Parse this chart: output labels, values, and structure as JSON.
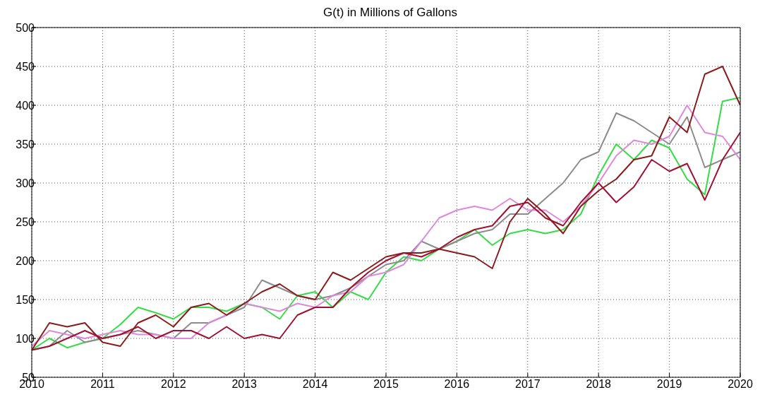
{
  "chart_data": {
    "type": "line",
    "title": "G(t) in Millions of Gallons",
    "x": [
      2010,
      2010.25,
      2010.5,
      2010.75,
      2011,
      2011.25,
      2011.5,
      2011.75,
      2012,
      2012.25,
      2012.5,
      2012.75,
      2013,
      2013.25,
      2013.5,
      2013.75,
      2014,
      2014.25,
      2014.5,
      2014.75,
      2015,
      2015.25,
      2015.5,
      2015.75,
      2016,
      2016.25,
      2016.5,
      2016.75,
      2017,
      2017.25,
      2017.5,
      2017.75,
      2018,
      2018.25,
      2018.5,
      2018.75,
      2019,
      2019.25,
      2019.5,
      2019.75,
      2020
    ],
    "series": [
      {
        "color": "#33dd44",
        "values": [
          85,
          100,
          88,
          95,
          100,
          118,
          140,
          133,
          125,
          140,
          140,
          135,
          145,
          140,
          125,
          155,
          160,
          140,
          160,
          150,
          185,
          205,
          200,
          215,
          225,
          240,
          220,
          235,
          240,
          235,
          240,
          260,
          310,
          350,
          330,
          355,
          345,
          305,
          285,
          405,
          410
        ]
      },
      {
        "color": "#8c8c8c",
        "values": [
          85,
          90,
          110,
          95,
          100,
          105,
          110,
          105,
          100,
          120,
          120,
          130,
          140,
          175,
          165,
          155,
          150,
          155,
          165,
          180,
          195,
          200,
          225,
          215,
          225,
          235,
          240,
          260,
          260,
          280,
          300,
          330,
          340,
          390,
          380,
          365,
          350,
          385,
          320,
          330,
          340
        ]
      },
      {
        "color": "#dd88dd",
        "values": [
          90,
          110,
          105,
          100,
          105,
          110,
          105,
          105,
          100,
          100,
          120,
          130,
          145,
          140,
          135,
          145,
          140,
          155,
          160,
          180,
          185,
          195,
          225,
          255,
          265,
          270,
          265,
          280,
          265,
          265,
          250,
          270,
          300,
          335,
          355,
          350,
          360,
          400,
          365,
          360,
          330
        ]
      },
      {
        "color": "#8b1a1a",
        "values": [
          85,
          120,
          115,
          120,
          95,
          90,
          120,
          130,
          115,
          140,
          145,
          130,
          145,
          160,
          170,
          155,
          150,
          185,
          175,
          190,
          205,
          210,
          210,
          215,
          210,
          205,
          190,
          250,
          280,
          260,
          235,
          270,
          290,
          305,
          330,
          335,
          385,
          365,
          440,
          450,
          400
        ]
      },
      {
        "color": "#a01030",
        "values": [
          85,
          90,
          100,
          110,
          100,
          105,
          115,
          100,
          110,
          110,
          100,
          115,
          100,
          105,
          100,
          130,
          140,
          140,
          165,
          185,
          200,
          210,
          205,
          215,
          230,
          240,
          245,
          270,
          275,
          255,
          245,
          275,
          300,
          275,
          295,
          330,
          315,
          325,
          278,
          330,
          365
        ]
      }
    ],
    "xlim": [
      2010,
      2020
    ],
    "xticks": [
      2010,
      2011,
      2012,
      2013,
      2014,
      2015,
      2016,
      2017,
      2018,
      2019,
      2020
    ],
    "ylim": [
      50,
      500
    ],
    "yticks": [
      50,
      100,
      150,
      200,
      250,
      300,
      350,
      400,
      450,
      500
    ],
    "grid": true,
    "line_style": "solid"
  }
}
